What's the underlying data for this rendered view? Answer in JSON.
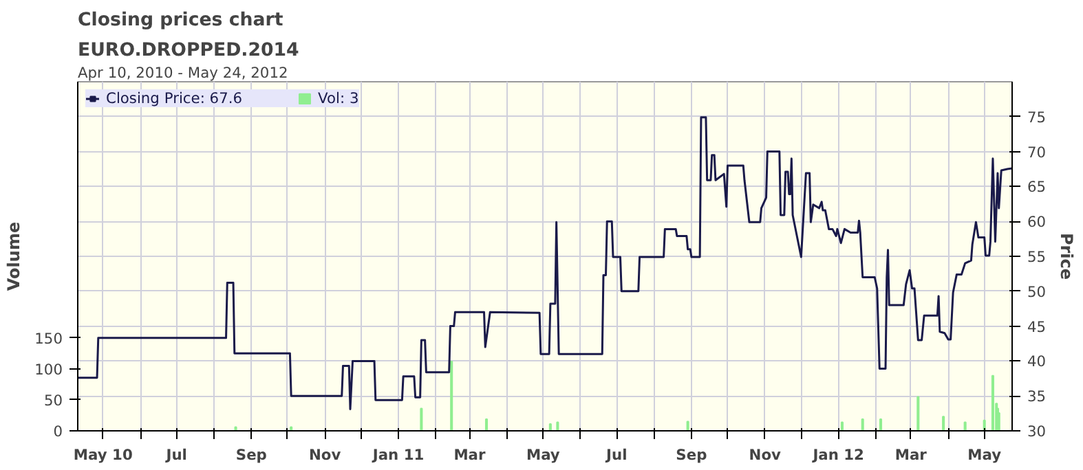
{
  "chart_data": {
    "type": "line",
    "title": "Closing prices chart",
    "subtitle": "EURO.DROPPED.2014",
    "annotations": [
      "Apr 10, 2010 - May 24, 2012"
    ],
    "ylabel": "Volume",
    "y2label": "Price",
    "xlim": [
      "2010-04-10",
      "2012-05-24"
    ],
    "xticks": [
      {
        "value": "2010-05-01",
        "label": "May 10"
      },
      {
        "value": "2010-06-01",
        "label": null
      },
      {
        "value": "2010-07-01",
        "label": "Jul"
      },
      {
        "value": "2010-08-01",
        "label": null
      },
      {
        "value": "2010-09-01",
        "label": "Sep"
      },
      {
        "value": "2010-10-01",
        "label": null
      },
      {
        "value": "2010-11-01",
        "label": "Nov"
      },
      {
        "value": "2010-12-01",
        "label": null
      },
      {
        "value": "2011-01-01",
        "label": "Jan 11"
      },
      {
        "value": "2011-02-01",
        "label": null
      },
      {
        "value": "2011-03-01",
        "label": "Mar"
      },
      {
        "value": "2011-04-01",
        "label": null
      },
      {
        "value": "2011-05-01",
        "label": "May"
      },
      {
        "value": "2011-06-01",
        "label": null
      },
      {
        "value": "2011-07-01",
        "label": "Jul"
      },
      {
        "value": "2011-08-01",
        "label": null
      },
      {
        "value": "2011-09-01",
        "label": "Sep"
      },
      {
        "value": "2011-10-01",
        "label": null
      },
      {
        "value": "2011-11-01",
        "label": "Nov"
      },
      {
        "value": "2011-12-01",
        "label": null
      },
      {
        "value": "2012-01-01",
        "label": "Jan 12"
      },
      {
        "value": "2012-02-01",
        "label": null
      },
      {
        "value": "2012-03-01",
        "label": "Mar"
      },
      {
        "value": "2012-04-01",
        "label": null
      },
      {
        "value": "2012-05-01",
        "label": "May"
      }
    ],
    "ylim": [
      0,
      564
    ],
    "yticks": [
      0,
      50,
      100,
      150
    ],
    "y2lim": [
      30,
      80
    ],
    "y2ticks": [
      30,
      35,
      40,
      45,
      50,
      55,
      60,
      65,
      70,
      75
    ],
    "grid": true,
    "legend": "top left",
    "marker": "none",
    "line_style": "solid",
    "series": [
      {
        "name": "Vol: 3",
        "type": "bar",
        "color": "#90ee90",
        "x": [
          "2010-08-19",
          "2010-10-04",
          "2011-01-20",
          "2011-02-14",
          "2011-03-15",
          "2011-05-07",
          "2011-05-13",
          "2011-08-29",
          "2012-01-04",
          "2012-01-21",
          "2012-02-05",
          "2012-03-07",
          "2012-03-28",
          "2012-04-15",
          "2012-05-01",
          "2012-05-08",
          "2012-05-11",
          "2012-05-12",
          "2012-05-13"
        ],
        "values": [
          6,
          6,
          36,
          112,
          19,
          11,
          14,
          15,
          14,
          19,
          19,
          55,
          23,
          14,
          17,
          89,
          44,
          36,
          29
        ]
      },
      {
        "name": "Closing Price: 67.6",
        "axis": "y2",
        "color": "#1a1a4a",
        "x": [
          "2010-04-10",
          "2010-04-26",
          "2010-04-27",
          "2010-08-11",
          "2010-08-12",
          "2010-08-17",
          "2010-08-18",
          "2010-10-03",
          "2010-10-04",
          "2010-11-15",
          "2010-11-16",
          "2010-11-21",
          "2010-11-22",
          "2010-11-24",
          "2010-12-12",
          "2010-12-13",
          "2011-01-04",
          "2011-01-05",
          "2011-01-14",
          "2011-01-15",
          "2011-01-19",
          "2011-01-20",
          "2011-01-23",
          "2011-01-24",
          "2011-02-12",
          "2011-02-13",
          "2011-02-16",
          "2011-02-17",
          "2011-03-13",
          "2011-03-14",
          "2011-03-18",
          "2011-04-28",
          "2011-04-29",
          "2011-05-06",
          "2011-05-07",
          "2011-05-11",
          "2011-05-12",
          "2011-05-14",
          "2011-06-19",
          "2011-06-20",
          "2011-06-22",
          "2011-06-23",
          "2011-06-27",
          "2011-06-28",
          "2011-07-04",
          "2011-07-05",
          "2011-07-19",
          "2011-07-20",
          "2011-08-09",
          "2011-08-10",
          "2011-08-19",
          "2011-08-20",
          "2011-08-28",
          "2011-08-29",
          "2011-08-31",
          "2011-09-01",
          "2011-09-08",
          "2011-09-09",
          "2011-09-13",
          "2011-09-14",
          "2011-09-17",
          "2011-09-18",
          "2011-09-20",
          "2011-09-21",
          "2011-09-28",
          "2011-09-30",
          "2011-10-01",
          "2011-10-14",
          "2011-10-15",
          "2011-10-19",
          "2011-10-28",
          "2011-10-29",
          "2011-11-02",
          "2011-11-03",
          "2011-11-13",
          "2011-11-14",
          "2011-11-17",
          "2011-11-18",
          "2011-11-20",
          "2011-11-21",
          "2011-11-22",
          "2011-11-23",
          "2011-11-24",
          "2011-12-01",
          "2011-12-05",
          "2011-12-08",
          "2011-12-09",
          "2011-12-11",
          "2011-12-16",
          "2011-12-18",
          "2011-12-19",
          "2011-12-21",
          "2011-12-24",
          "2011-12-27",
          "2011-12-30",
          "2011-12-31",
          "2012-01-03",
          "2012-01-06",
          "2012-01-11",
          "2012-01-17",
          "2012-01-18",
          "2012-01-19",
          "2012-01-21",
          "2012-01-31",
          "2012-02-02",
          "2012-02-04",
          "2012-02-09",
          "2012-02-10",
          "2012-02-11",
          "2012-02-12",
          "2012-02-24",
          "2012-02-26",
          "2012-02-29",
          "2012-03-02",
          "2012-03-04",
          "2012-03-07",
          "2012-03-10",
          "2012-03-12",
          "2012-03-23",
          "2012-03-24",
          "2012-03-25",
          "2012-03-29",
          "2012-04-01",
          "2012-04-03",
          "2012-04-05",
          "2012-04-08",
          "2012-04-12",
          "2012-04-15",
          "2012-04-20",
          "2012-04-21",
          "2012-04-24",
          "2012-04-26",
          "2012-05-01",
          "2012-05-02",
          "2012-05-05",
          "2012-05-06",
          "2012-05-08",
          "2012-05-10",
          "2012-05-12",
          "2012-05-13",
          "2012-05-15",
          "2012-05-20",
          "2012-05-24"
        ],
        "values": [
          37.6,
          37.6,
          43.3,
          43.3,
          51.2,
          51.2,
          41.1,
          41.1,
          35.0,
          35.0,
          39.3,
          39.3,
          33.1,
          40.0,
          40.0,
          34.4,
          34.4,
          37.8,
          37.8,
          34.8,
          34.8,
          43.0,
          43.0,
          38.4,
          38.4,
          45.0,
          45.0,
          47.0,
          47.0,
          42.0,
          47.0,
          46.9,
          41.0,
          41.0,
          48.2,
          48.2,
          59.9,
          41.0,
          41.0,
          52.3,
          52.3,
          60.0,
          60.0,
          54.9,
          54.9,
          50.0,
          50.0,
          54.9,
          54.9,
          58.9,
          58.9,
          57.9,
          57.9,
          56.0,
          56.0,
          54.9,
          54.9,
          74.9,
          74.9,
          65.9,
          65.9,
          69.5,
          69.5,
          65.9,
          66.8,
          62.1,
          68.0,
          68.0,
          65.9,
          59.9,
          59.9,
          61.9,
          63.4,
          70.0,
          70.0,
          60.9,
          60.9,
          67.1,
          67.1,
          63.9,
          63.9,
          69.0,
          60.9,
          54.9,
          66.9,
          66.9,
          59.9,
          62.4,
          61.9,
          62.8,
          61.6,
          61.6,
          58.9,
          58.9,
          57.9,
          58.9,
          56.9,
          58.9,
          58.4,
          58.4,
          60.1,
          58.4,
          52.0,
          52.0,
          50.4,
          38.9,
          38.9,
          52.0,
          55.9,
          48.0,
          48.0,
          51.0,
          53.0,
          50.4,
          50.4,
          43.0,
          43.0,
          46.5,
          46.5,
          49.3,
          44.2,
          44.0,
          43.1,
          43.1,
          49.8,
          52.4,
          52.4,
          54.0,
          54.4,
          56.7,
          59.9,
          57.7,
          57.7,
          55.1,
          55.1,
          57.1,
          69.0,
          57.1,
          66.9,
          61.9,
          67.3,
          67.5,
          67.6
        ]
      }
    ]
  }
}
